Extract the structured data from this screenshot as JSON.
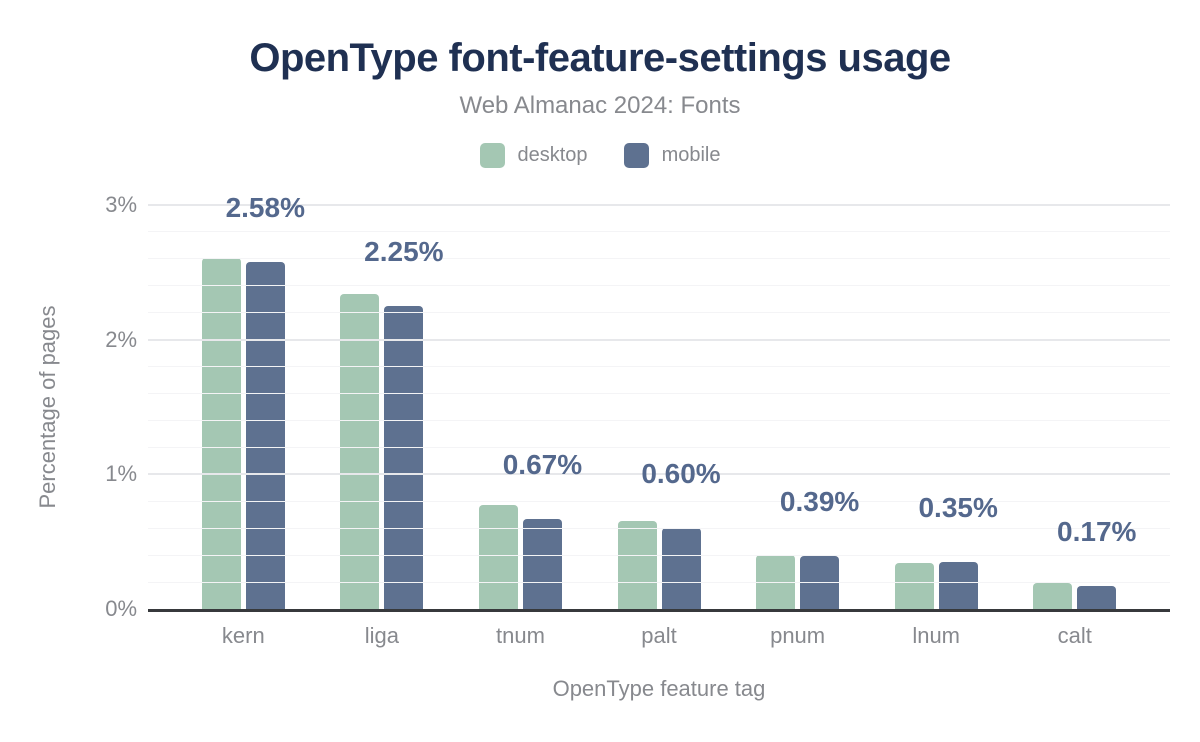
{
  "header": {
    "title": "OpenType font-feature-settings usage",
    "subtitle": "Web Almanac 2024: Fonts"
  },
  "chart_data": {
    "type": "bar",
    "title": "OpenType font-feature-settings usage",
    "subtitle": "Web Almanac 2024: Fonts",
    "categories": [
      "kern",
      "liga",
      "tnum",
      "palt",
      "pnum",
      "lnum",
      "calt"
    ],
    "series": [
      {
        "name": "desktop",
        "color": "#a4c7b3",
        "values": [
          2.61,
          2.34,
          0.77,
          0.65,
          0.4,
          0.34,
          0.19
        ]
      },
      {
        "name": "mobile",
        "color": "#5e7190",
        "values": [
          2.58,
          2.25,
          0.67,
          0.6,
          0.39,
          0.35,
          0.17
        ]
      }
    ],
    "value_labels": [
      "2.58%",
      "2.25%",
      "0.67%",
      "0.60%",
      "0.39%",
      "0.35%",
      "0.17%"
    ],
    "labeled_series": "mobile",
    "xlabel": "OpenType feature tag",
    "ylabel": "Percentage of pages",
    "ylim": [
      0,
      3
    ],
    "yticks": [
      "0%",
      "1%",
      "2%",
      "3%"
    ],
    "ytick_values": [
      0,
      1,
      2,
      3
    ],
    "minor_gridline_step": 0.2,
    "grid": true,
    "legend_position": "top"
  },
  "colors": {
    "title": "#1f3052",
    "muted_text": "#87898e",
    "value_label": "#54688d",
    "gridline_major": "#e7e8eb",
    "gridline_minor": "#f4f4f6",
    "axis_line": "#37393c",
    "background": "#ffffff"
  }
}
